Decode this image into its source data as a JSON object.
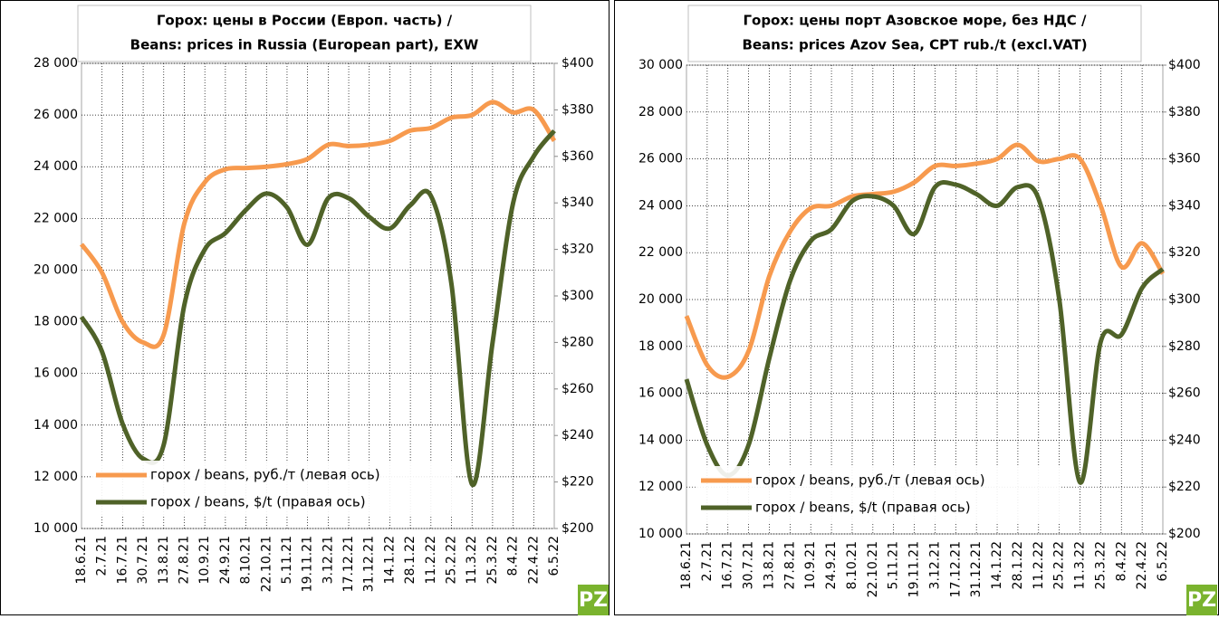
{
  "chart_data": [
    {
      "type": "line",
      "title": [
        "Горох: цены в России (Европ. часть) /",
        "Beans: prices in Russia (European part), EXW"
      ],
      "categories": [
        "18.6.21",
        "2.7.21",
        "16.7.21",
        "30.7.21",
        "13.8.21",
        "27.8.21",
        "10.9.21",
        "24.9.21",
        "8.10.21",
        "22.10.21",
        "5.11.21",
        "19.11.21",
        "3.12.21",
        "17.12.21",
        "31.12.21",
        "14.1.22",
        "28.1.22",
        "11.2.22",
        "25.2.22",
        "11.3.22",
        "25.3.22",
        "8.4.22",
        "22.4.22",
        "6.5.22"
      ],
      "series": [
        {
          "name": "горох / beans, руб./т (левая ось)",
          "color": "#f79a4e",
          "values": [
            21000,
            19900,
            18000,
            17200,
            17500,
            21800,
            23400,
            23900,
            23950,
            24000,
            24100,
            24300,
            24850,
            24800,
            24850,
            25000,
            25400,
            25500,
            25900,
            26000,
            26500,
            26100,
            26200,
            25000
          ]
        },
        {
          "name": "горох / beans, $/t  (правая ось)",
          "color": "#4f6228",
          "axis": "y2",
          "values": [
            291,
            276,
            245,
            230,
            236,
            296,
            320,
            327,
            337,
            344,
            338,
            322,
            342,
            342,
            334,
            329,
            339,
            343,
            305,
            219,
            280,
            340,
            360,
            371
          ]
        }
      ],
      "ylim": [
        10000,
        28000
      ],
      "yticks": [
        {
          "value": 10000,
          "label": "10 000"
        },
        {
          "value": 12000,
          "label": "12 000"
        },
        {
          "value": 14000,
          "label": "14 000"
        },
        {
          "value": 16000,
          "label": "16 000"
        },
        {
          "value": 18000,
          "label": "18 000"
        },
        {
          "value": 20000,
          "label": "20 000"
        },
        {
          "value": 22000,
          "label": "22 000"
        },
        {
          "value": 24000,
          "label": "24 000"
        },
        {
          "value": 26000,
          "label": "26 000"
        },
        {
          "value": 28000,
          "label": "28 000"
        }
      ],
      "y2lim": [
        200,
        400
      ],
      "y2ticks": [
        {
          "value": 200,
          "label": "$200"
        },
        {
          "value": 220,
          "label": "$220"
        },
        {
          "value": 240,
          "label": "$240"
        },
        {
          "value": 260,
          "label": "$260"
        },
        {
          "value": 280,
          "label": "$280"
        },
        {
          "value": 300,
          "label": "$300"
        },
        {
          "value": 320,
          "label": "$320"
        },
        {
          "value": 340,
          "label": "$340"
        },
        {
          "value": 360,
          "label": "$360"
        },
        {
          "value": 380,
          "label": "$380"
        },
        {
          "value": 400,
          "label": "$400"
        }
      ],
      "grid": true,
      "legend": "lower left"
    },
    {
      "type": "line",
      "title": [
        "Горох: цены порт Азовское море, без НДС /",
        "Beans: prices Azov Sea, CPT rub./t (excl.VAT)"
      ],
      "categories": [
        "18.6.21",
        "2.7.21",
        "16.7.21",
        "30.7.21",
        "13.8.21",
        "27.8.21",
        "10.9.21",
        "24.9.21",
        "8.10.21",
        "22.10.21",
        "5.11.21",
        "19.11.21",
        "3.12.21",
        "17.12.21",
        "31.12.21",
        "14.1.22",
        "28.1.22",
        "11.2.22",
        "25.2.22",
        "11.3.22",
        "25.3.22",
        "8.4.22",
        "22.4.22",
        "6.5.22"
      ],
      "series": [
        {
          "name": "горох / beans, руб./т (левая ось)",
          "color": "#f79a4e",
          "values": [
            19300,
            17200,
            16700,
            17800,
            21000,
            22900,
            23900,
            24000,
            24400,
            24500,
            24600,
            25000,
            25700,
            25700,
            25800,
            26000,
            26600,
            25900,
            26000,
            26000,
            24000,
            21400,
            22400,
            21100
          ]
        },
        {
          "name": "горох / beans, $/t (правая ось)",
          "color": "#4f6228",
          "axis": "y2",
          "values": [
            266,
            238,
            225,
            238,
            275,
            308,
            325,
            330,
            342,
            344,
            340,
            328,
            348,
            349,
            345,
            340,
            348,
            343,
            300,
            222,
            282,
            285,
            305,
            313
          ]
        }
      ],
      "ylim": [
        10000,
        30000
      ],
      "yticks": [
        {
          "value": 10000,
          "label": "10 000"
        },
        {
          "value": 12000,
          "label": "12 000"
        },
        {
          "value": 14000,
          "label": "14 000"
        },
        {
          "value": 16000,
          "label": "16 000"
        },
        {
          "value": 18000,
          "label": "18 000"
        },
        {
          "value": 20000,
          "label": "20 000"
        },
        {
          "value": 22000,
          "label": "22 000"
        },
        {
          "value": 24000,
          "label": "24 000"
        },
        {
          "value": 26000,
          "label": "26 000"
        },
        {
          "value": 28000,
          "label": "28 000"
        },
        {
          "value": 30000,
          "label": "30 000"
        }
      ],
      "y2lim": [
        200,
        400
      ],
      "y2ticks": [
        {
          "value": 200,
          "label": "$200"
        },
        {
          "value": 220,
          "label": "$220"
        },
        {
          "value": 240,
          "label": "$240"
        },
        {
          "value": 260,
          "label": "$260"
        },
        {
          "value": 280,
          "label": "$280"
        },
        {
          "value": 300,
          "label": "$300"
        },
        {
          "value": 320,
          "label": "$320"
        },
        {
          "value": 340,
          "label": "$340"
        },
        {
          "value": 360,
          "label": "$360"
        },
        {
          "value": 380,
          "label": "$380"
        },
        {
          "value": 400,
          "label": "$400"
        }
      ],
      "grid": true,
      "legend": "lower left"
    }
  ]
}
